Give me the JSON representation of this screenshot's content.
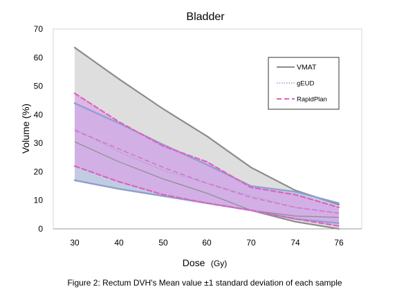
{
  "chart_data": {
    "type": "area",
    "title": "Bladder",
    "xlabel": "Dose",
    "xlabel_unit": "(Gy)",
    "ylabel": "Volume (%)",
    "categories": [
      "30",
      "40",
      "50",
      "60",
      "70",
      "74",
      "76"
    ],
    "ylim": [
      0,
      70
    ],
    "yticks": [
      0,
      10,
      20,
      30,
      40,
      50,
      60,
      70
    ],
    "legend_position": "top-right",
    "series": [
      {
        "name": "VMAT",
        "color": "#8c8c8c",
        "band_fill": "#c8c8c8",
        "line_style": "solid",
        "mean": [
          30.5,
          23.5,
          17.5,
          12.5,
          6.5,
          4.5,
          4.0
        ],
        "upper": [
          63.5,
          52.5,
          42.0,
          32.5,
          21.5,
          13.5,
          8.5
        ],
        "lower": [
          17.0,
          14.0,
          11.5,
          9.0,
          6.5,
          2.5,
          0.0
        ]
      },
      {
        "name": "gEUD",
        "color": "#8ea0d0",
        "band_fill": "#aebfe6",
        "line_style": "dotted",
        "mean": [
          35.0,
          27.0,
          20.5,
          16.0,
          11.5,
          7.5,
          5.5
        ],
        "upper": [
          44.0,
          37.0,
          29.5,
          22.5,
          15.0,
          13.0,
          9.0
        ],
        "lower": [
          17.0,
          14.0,
          11.5,
          9.0,
          6.5,
          3.5,
          2.0
        ]
      },
      {
        "name": "RapidPlan",
        "color": "#e060c0",
        "band_fill": "#dd9be6",
        "line_style": "dashed",
        "mean": [
          34.5,
          28.0,
          21.5,
          16.0,
          11.0,
          7.5,
          5.5
        ],
        "upper": [
          47.5,
          37.5,
          29.0,
          23.5,
          14.5,
          12.0,
          7.5
        ],
        "lower": [
          22.0,
          16.5,
          12.0,
          9.0,
          6.5,
          3.5,
          1.0
        ]
      }
    ],
    "caption": "Figure 2: Rectum DVH's Mean value ±1  standard deviation of each sample"
  }
}
